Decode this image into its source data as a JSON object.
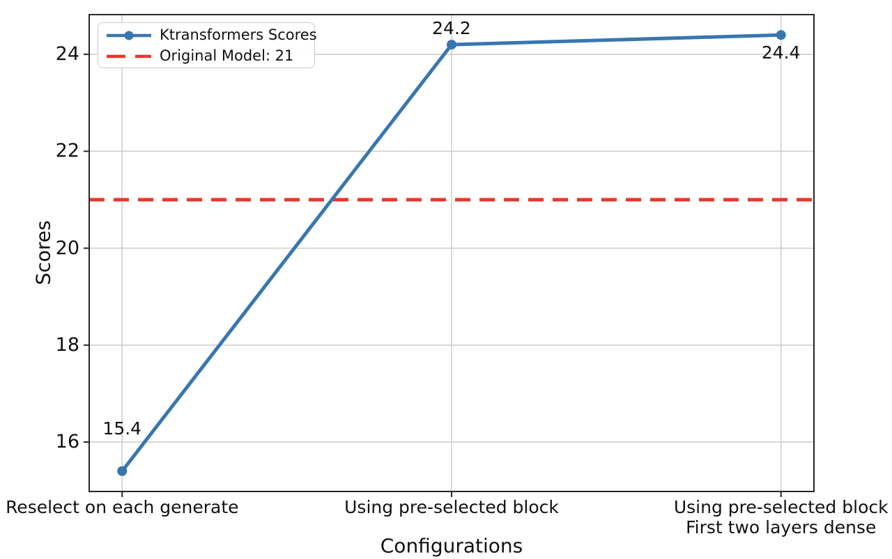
{
  "chart_data": {
    "type": "line",
    "title": "",
    "xlabel": "Configurations",
    "ylabel": "Scores",
    "categories": [
      "Reselect on each generate",
      "Using pre-selected block",
      "Using pre-selected block\nFirst two layers dense"
    ],
    "series": [
      {
        "name": "Ktransformers Scores",
        "values": [
          15.4,
          24.2,
          24.4
        ],
        "marker": "circle",
        "color": "#3876af"
      }
    ],
    "point_labels": [
      "15.4",
      "24.2",
      "24.4"
    ],
    "label_dy": [
      -61,
      -23,
      26
    ],
    "reference_line": {
      "label": "Original Model: 21",
      "value": 21,
      "style": "dashed",
      "color": "#e7382d"
    },
    "yticks": [
      16,
      18,
      20,
      22,
      24
    ],
    "ylim": [
      14.98,
      24.82
    ],
    "grid": true,
    "legend": {
      "position": "upper left",
      "entries": [
        "Ktransformers Scores",
        "Original Model: 21"
      ]
    },
    "colors": {
      "series": "#3876af",
      "reference": "#e7382d",
      "grid": "#cccccc",
      "axis": "#262626",
      "text": "#111111"
    }
  }
}
